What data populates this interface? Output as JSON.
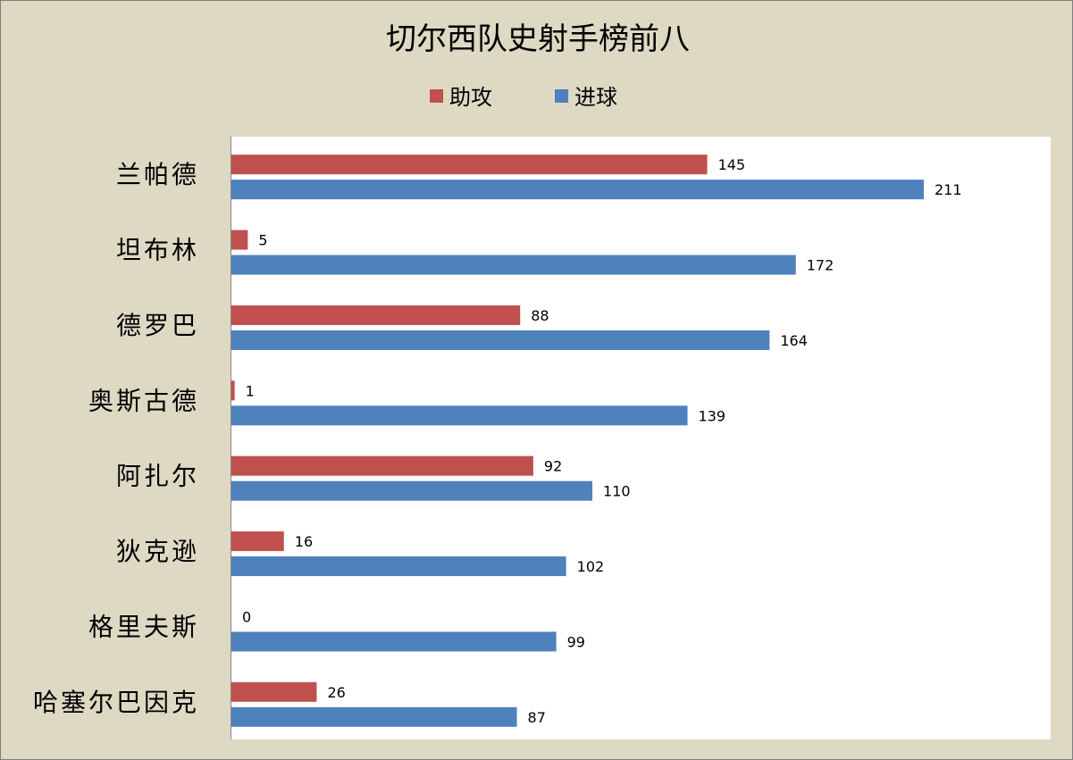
{
  "chart_data": {
    "type": "bar",
    "orientation": "horizontal",
    "title": "切尔西队史射手榜前八",
    "categories": [
      "兰帕德",
      "坦布林",
      "德罗巴",
      "奥斯古德",
      "阿扎尔",
      "狄克逊",
      "格里夫斯",
      "哈塞尔巴因克"
    ],
    "series": [
      {
        "name": "助攻",
        "color": "#c0504d",
        "values": [
          145,
          5,
          88,
          1,
          92,
          16,
          0,
          26
        ]
      },
      {
        "name": "进球",
        "color": "#4f81bd",
        "values": [
          211,
          172,
          164,
          139,
          110,
          102,
          99,
          87
        ]
      }
    ],
    "xlim": [
      0,
      250
    ],
    "grid": false,
    "legend_position": "top",
    "data_labels": true,
    "plot_background": "#ffffff",
    "chart_background": "#ddd9c3"
  }
}
